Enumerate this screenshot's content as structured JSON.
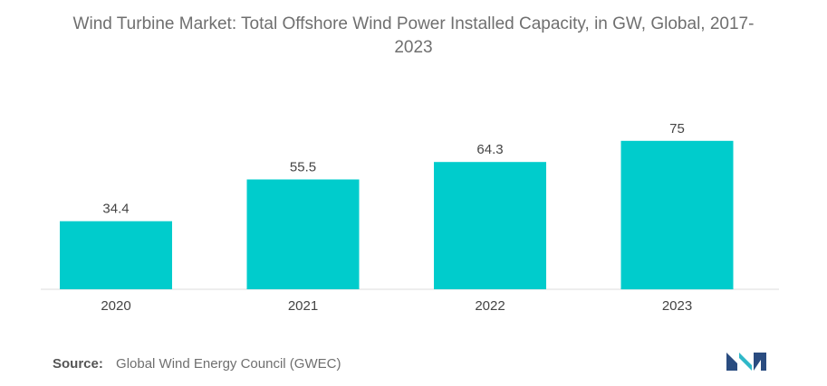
{
  "chart_data": {
    "type": "bar",
    "title_lines": [
      "Wind Turbine Market: Total Offshore Wind Power Installed Capacity, in GW, Global, 2017-",
      "2023"
    ],
    "categories": [
      "2020",
      "2021",
      "2022",
      "2023"
    ],
    "values": [
      34.4,
      55.5,
      64.3,
      75
    ],
    "data_labels": [
      "34.4",
      "55.5",
      "64.3",
      "75"
    ],
    "ylim": [
      0,
      100
    ],
    "y_axis_visible": false,
    "grid": false,
    "legend": "none",
    "bar_color": "#00cccc"
  },
  "source": {
    "label": "Source:",
    "text": "Global Wind Energy Council (GWEC)"
  },
  "logo": {
    "icon": "mordor-intelligence-logo-icon",
    "colors": [
      "#2a4c80",
      "#2fb8c8"
    ]
  }
}
